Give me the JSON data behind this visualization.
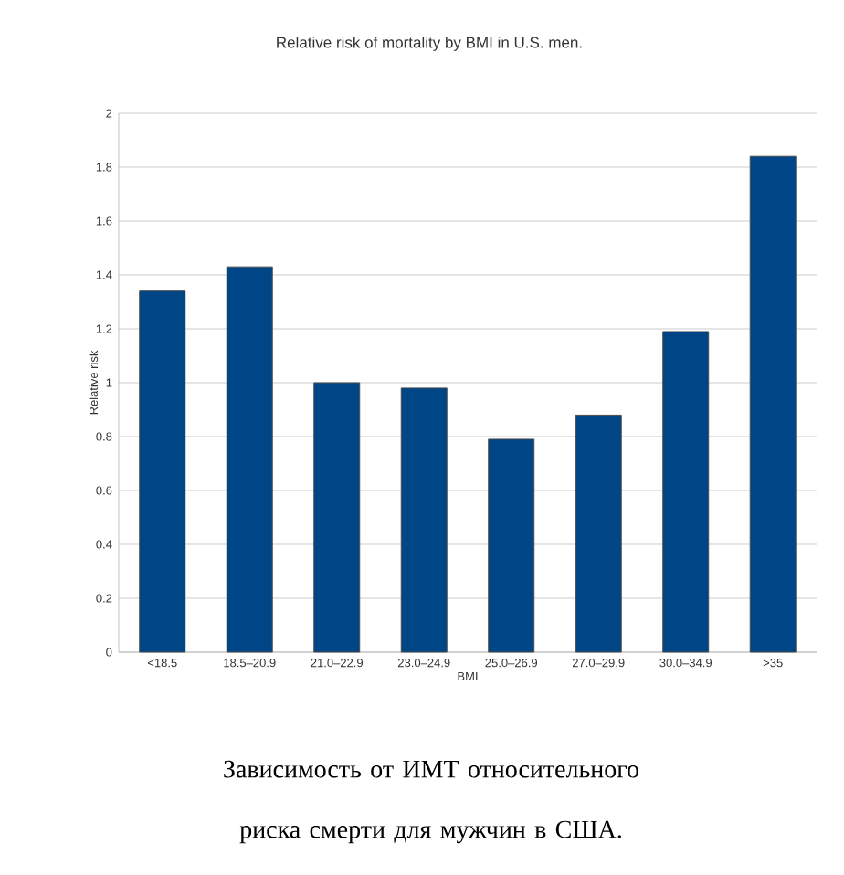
{
  "chart_data": {
    "type": "bar",
    "title": "Relative risk of mortality by BMI in U.S. men.",
    "xlabel": "BMI",
    "ylabel": "Relative risk",
    "categories": [
      "<18.5",
      "18.5–20.9",
      "21.0–22.9",
      "23.0–24.9",
      "25.0–26.9",
      "27.0–29.9",
      "30.0–34.9",
      ">35"
    ],
    "values": [
      1.34,
      1.43,
      1.0,
      0.98,
      0.79,
      0.88,
      1.19,
      1.84
    ],
    "color": "#004586",
    "ylim": [
      0,
      2
    ],
    "yticks": [
      0,
      0.2,
      0.4,
      0.6,
      0.8,
      1,
      1.2,
      1.4,
      1.6,
      1.8,
      2
    ],
    "grid": "y",
    "annotations": [
      "Зависимость от ИМТ относительного риска смерти для мужчин в США."
    ]
  }
}
